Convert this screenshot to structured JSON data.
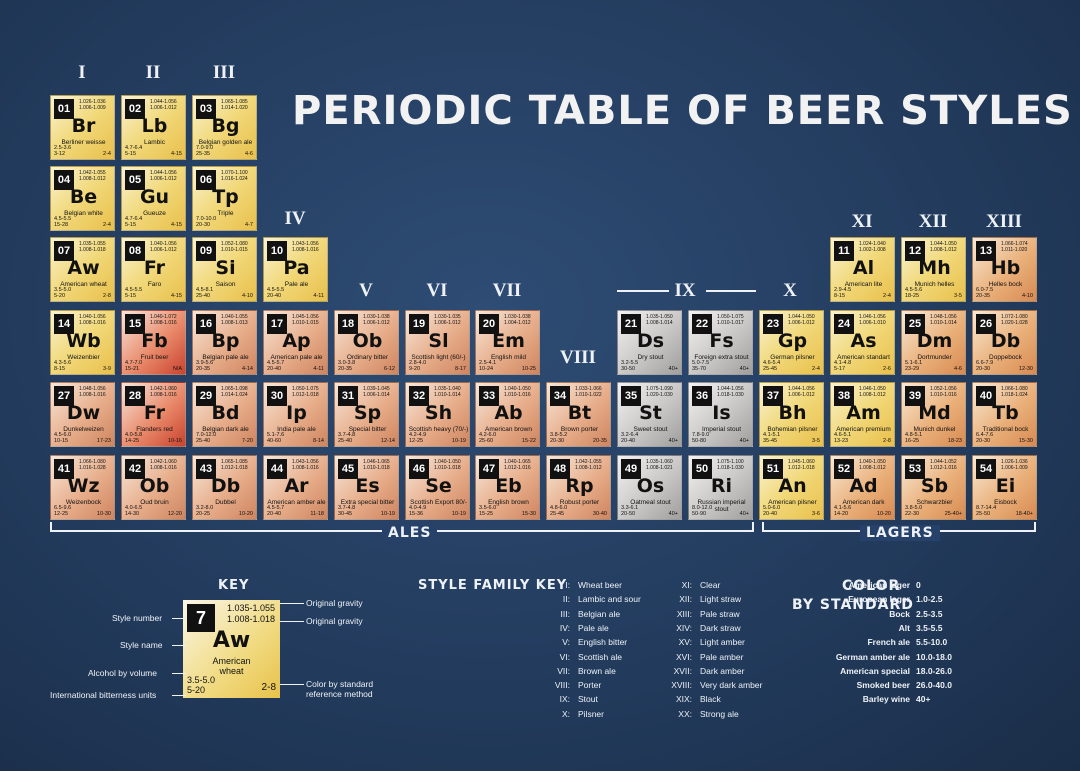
{
  "title": "PERIODIC TABLE OF BEER STYLES",
  "groups": [
    "I",
    "II",
    "III",
    "IV",
    "V",
    "VI",
    "VII",
    "VIII",
    "IX",
    "X",
    "XI",
    "XII",
    "XIII"
  ],
  "ales_label": "ALES",
  "lagers_label": "LAGERS",
  "colors": {
    "pale": "#f3e08a",
    "gold": "#f0c64e",
    "amber": "#e8a06a",
    "red": "#d9664a",
    "brown": "#c98a6e",
    "grey": "#b9b6b6",
    "dark": "#8a8888"
  },
  "styles": [
    {
      "n": "01",
      "s": "Br",
      "name": "Berliner weisse",
      "og": "1.026-1.036\n1.006-1.009",
      "abv": "2.5-3.6\n3-12",
      "srm": "2-4"
    },
    {
      "n": "02",
      "s": "Lb",
      "name": "Lambic",
      "og": "1.044-1.056\n1.006-1.012",
      "abv": "4.7-6.4\n5-15",
      "srm": "4-15"
    },
    {
      "n": "03",
      "s": "Bg",
      "name": "Belgian golden ale",
      "og": "1.065-1.085\n1.014-1.020",
      "abv": "7.0-9.0\n25-35",
      "srm": "4-6"
    },
    {
      "n": "04",
      "s": "Be",
      "name": "Belgian white",
      "og": "1.042-1.055\n1.008-1.012",
      "abv": "4.5-5.5\n15-28",
      "srm": "2-4"
    },
    {
      "n": "05",
      "s": "Gu",
      "name": "Gueuze",
      "og": "1.044-1.056\n1.006-1.012",
      "abv": "4.7-6.4\n5-15",
      "srm": "4-15"
    },
    {
      "n": "06",
      "s": "Tp",
      "name": "Triple",
      "og": "1.070-1.100\n1.016-1.024",
      "abv": "7.0-10.0\n20-30",
      "srm": "4-7"
    },
    {
      "n": "07",
      "s": "Aw",
      "name": "American wheat",
      "og": "1.035-1.055\n1.008-1.018",
      "abv": "3.5-5.0\n5-20",
      "srm": "2-8"
    },
    {
      "n": "08",
      "s": "Fr",
      "name": "Faro",
      "og": "1.040-1.056\n1.006-1.012",
      "abv": "4.5-5.5\n5-15",
      "srm": "4-15"
    },
    {
      "n": "09",
      "s": "Si",
      "name": "Saison",
      "og": "1.052-1.080\n1.010-1.015",
      "abv": "4.5-8.1\n25-40",
      "srm": "4-10"
    },
    {
      "n": "10",
      "s": "Pa",
      "name": "Pale ale",
      "og": "1.043-1.056\n1.008-1.016",
      "abv": "4.5-5.5\n20-40",
      "srm": "4-11"
    },
    {
      "n": "11",
      "s": "Al",
      "name": "American lite",
      "og": "1.024-1.040\n1.002-1.008",
      "abv": "2.9-4.5\n8-15",
      "srm": "2-4"
    },
    {
      "n": "12",
      "s": "Mh",
      "name": "Munich helles",
      "og": "1.044-1.050\n1.008-1.012",
      "abv": "4.5-5.6\n18-25",
      "srm": "3-5"
    },
    {
      "n": "13",
      "s": "Hb",
      "name": "Helles bock",
      "og": "1.066-1.074\n1.011-1.020",
      "abv": "6.0-7.5\n20-35",
      "srm": "4-10"
    },
    {
      "n": "14",
      "s": "Wb",
      "name": "Weizenbier",
      "og": "1.040-1.056\n1.008-1.016",
      "abv": "4.3-5.6\n8-15",
      "srm": "3-9"
    },
    {
      "n": "15",
      "s": "Fb",
      "name": "Fruit beer",
      "og": "1.040-1.072\n1.008-1.016",
      "abv": "4.7-7.0\n15-21",
      "srm": "N/A"
    },
    {
      "n": "16",
      "s": "Bp",
      "name": "Belgian pale ale",
      "og": "1.040-1.055\n1.008-1.013",
      "abv": "3.9-5.6\n20-35",
      "srm": "4-14"
    },
    {
      "n": "17",
      "s": "Ap",
      "name": "American pale ale",
      "og": "1.045-1.056\n1.010-1.015",
      "abv": "4.5-5.7\n20-40",
      "srm": "4-11"
    },
    {
      "n": "18",
      "s": "Ob",
      "name": "Ordinary bitter",
      "og": "1.030-1.038\n1.006-1.012",
      "abv": "3.0-3.8\n20-35",
      "srm": "6-12"
    },
    {
      "n": "19",
      "s": "Sl",
      "name": "Scottish light (60/-)",
      "og": "1.030-1.035\n1.006-1.012",
      "abv": "2.8-4.0\n9-20",
      "srm": "8-17"
    },
    {
      "n": "20",
      "s": "Em",
      "name": "English mild",
      "og": "1.030-1.038\n1.004-1.012",
      "abv": "2.5-4.1\n10-24",
      "srm": "10-25"
    },
    {
      "n": "21",
      "s": "Ds",
      "name": "Dry stout",
      "og": "1.035-1.050\n1.008-1.014",
      "abv": "3.2-5.5\n30-50",
      "srm": "40+"
    },
    {
      "n": "22",
      "s": "Fs",
      "name": "Foreign extra stout",
      "og": "1.050-1.075\n1.010-1.017",
      "abv": "5.0-7.5\n35-70",
      "srm": "40+"
    },
    {
      "n": "23",
      "s": "Gp",
      "name": "German pilsner",
      "og": "1.044-1.050\n1.006-1.012",
      "abv": "4.6-5.4\n25-45",
      "srm": "2-4"
    },
    {
      "n": "24",
      "s": "As",
      "name": "American standart",
      "og": "1.046-1.056\n1.006-1.010",
      "abv": "4.1-4.8\n5-17",
      "srm": "2-6"
    },
    {
      "n": "25",
      "s": "Dm",
      "name": "Dortmunder",
      "og": "1.048-1.056\n1.010-1.014",
      "abv": "5.1-6.1\n23-29",
      "srm": "4-6"
    },
    {
      "n": "26",
      "s": "Db",
      "name": "Doppebock",
      "og": "1.072-1.080\n1.020-1.028",
      "abv": "6.6-7.9\n20-30",
      "srm": "12-30"
    },
    {
      "n": "27",
      "s": "Dw",
      "name": "Dunkelweizen",
      "og": "1.048-1.056\n1.008-1.016",
      "abv": "4.5-6.0\n10-15",
      "srm": "17-23"
    },
    {
      "n": "28",
      "s": "Fr",
      "name": "Flanders red",
      "og": "1.042-1.060\n1.008-1.016",
      "abv": "4.0-5.8\n14-25",
      "srm": "10-16"
    },
    {
      "n": "29",
      "s": "Bd",
      "name": "Belgian dark ale",
      "og": "1.065-1.098\n1.014-1.024",
      "abv": "7.0-12.0\n25-40",
      "srm": "7-20"
    },
    {
      "n": "30",
      "s": "Ip",
      "name": "India pale ale",
      "og": "1.050-1.075\n1.012-1.018",
      "abv": "5.1-7.6\n40-60",
      "srm": "8-14"
    },
    {
      "n": "31",
      "s": "Sp",
      "name": "Special bitter",
      "og": "1.039-1.045\n1.006-1.014",
      "abv": "3.7-4.8\n25-40",
      "srm": "12-14"
    },
    {
      "n": "32",
      "s": "Sh",
      "name": "Scottish heavy (70/-)",
      "og": "1.035-1.040\n1.010-1.014",
      "abv": "4.2-4.9\n12-25",
      "srm": "10-19"
    },
    {
      "n": "33",
      "s": "Ab",
      "name": "American brown",
      "og": "1.040-1.050\n1.010-1.016",
      "abv": "4.2-6.0\n25-60",
      "srm": "15-22"
    },
    {
      "n": "34",
      "s": "Bt",
      "name": "Brown porter",
      "og": "1.033-1.066\n1.010-1.022",
      "abv": "3.8-5.2\n20-30",
      "srm": "20-35"
    },
    {
      "n": "35",
      "s": "St",
      "name": "Sweet stout",
      "og": "1.075-1.090\n1.020-1.030",
      "abv": "3.2-6.4\n20-40",
      "srm": "40+"
    },
    {
      "n": "36",
      "s": "Is",
      "name": "Imperial stout",
      "og": "1.044-1.056\n1.018-1.030",
      "abv": "7.8-9.0\n50-80",
      "srm": "40+"
    },
    {
      "n": "37",
      "s": "Bh",
      "name": "Bohemian pilsner",
      "og": "1.044-1.056\n1.006-1.012",
      "abv": "4.1-5.1\n35-45",
      "srm": "3-5"
    },
    {
      "n": "38",
      "s": "Am",
      "name": "American premium",
      "og": "1.046-1.050\n1.008-1.012",
      "abv": "4.6-5.1\n13-23",
      "srm": "2-8"
    },
    {
      "n": "39",
      "s": "Md",
      "name": "Munich dunkel",
      "og": "1.052-1.056\n1.010-1.016",
      "abv": "4.8-5.1\n16-25",
      "srm": "18-23"
    },
    {
      "n": "40",
      "s": "Tb",
      "name": "Traditional bock",
      "og": "1.066-1.080\n1.018-1.024",
      "abv": "6.4-7.6\n20-30",
      "srm": "15-30"
    },
    {
      "n": "41",
      "s": "Wz",
      "name": "Weizenbock",
      "og": "1.066-1.080\n1.016-1.028",
      "abv": "6.5-9.6\n12-25",
      "srm": "10-30"
    },
    {
      "n": "42",
      "s": "Ob",
      "name": "Oud bruin",
      "og": "1.042-1.060\n1.008-1.016",
      "abv": "4.0-6.5\n14-30",
      "srm": "12-20"
    },
    {
      "n": "43",
      "s": "Db",
      "name": "Dubbel",
      "og": "1.065-1.085\n1.012-1.018",
      "abv": "3.2-8.0\n20-25",
      "srm": "10-20"
    },
    {
      "n": "44",
      "s": "Ar",
      "name": "American amber ale",
      "og": "1.043-1.056\n1.008-1.016",
      "abv": "4.5-5.7\n20-40",
      "srm": "11-18"
    },
    {
      "n": "45",
      "s": "Es",
      "name": "Extra special bitter",
      "og": "1.046-1.065\n1.010-1.018",
      "abv": "3.7-4.8\n30-45",
      "srm": "10-19"
    },
    {
      "n": "46",
      "s": "Se",
      "name": "Scottish Export 80/-",
      "og": "1.040-1.050\n1.010-1.018",
      "abv": "4.0-4.9\n15-36",
      "srm": "10-19"
    },
    {
      "n": "47",
      "s": "Eb",
      "name": "English brown",
      "og": "1.040-1.065\n1.012-1.016",
      "abv": "3.5-6.0\n15-25",
      "srm": "15-30"
    },
    {
      "n": "48",
      "s": "Rp",
      "name": "Robust porter",
      "og": "1.042-1.055\n1.008-1.012",
      "abv": "4.8-6.0\n25-45",
      "srm": "30-40"
    },
    {
      "n": "49",
      "s": "Os",
      "name": "Oatmeal stout",
      "og": "1.035-1.060\n1.008-1.021",
      "abv": "3.3-6.1\n20-50",
      "srm": "40+"
    },
    {
      "n": "50",
      "s": "Ri",
      "name": "Russian imperial stout",
      "og": "1.075-1.100\n1.018-1.030",
      "abv": "8.0-12.0\n50-90",
      "srm": "40+"
    },
    {
      "n": "51",
      "s": "An",
      "name": "American pilsner",
      "og": "1.045-1.060\n1.012-1.018",
      "abv": "5.0-6.0\n20-40",
      "srm": "3-6"
    },
    {
      "n": "52",
      "s": "Ad",
      "name": "American dark",
      "og": "1.040-1.050\n1.008-1.012",
      "abv": "4.1-5.6\n14-20",
      "srm": "10-20"
    },
    {
      "n": "53",
      "s": "Sb",
      "name": "Schwarzbier",
      "og": "1.044-1.052\n1.012-1.016",
      "abv": "3.8-5.0\n22-30",
      "srm": "25-40+"
    },
    {
      "n": "54",
      "s": "Ei",
      "name": "Eisbock",
      "og": "1.026-1.036\n1.006-1.009",
      "abv": "8.7-14.4\n25-50",
      "srm": "18-40+"
    }
  ],
  "key": {
    "heading": "KEY",
    "number": "7",
    "og1": "1.035-1.055",
    "og2": "1.008-1.018",
    "symbol": "Aw",
    "name": "American wheat",
    "abv": "3.5-5.0",
    "ibu": "5-20",
    "srm": "2-8",
    "label_number": "Style number",
    "label_name": "Style name",
    "label_abv": "Alcohol by volume",
    "label_ibu": "International bitterness units",
    "label_og1": "Original gravity",
    "label_og2": "Original gravity",
    "label_color": "Color by standard reference method"
  },
  "family_key": {
    "heading": "STYLE FAMILY KEY",
    "col1": [
      {
        "r": "I:",
        "t": "Wheat beer"
      },
      {
        "r": "II:",
        "t": "Lambic and sour"
      },
      {
        "r": "III:",
        "t": "Belgian ale"
      },
      {
        "r": "IV:",
        "t": "Pale ale"
      },
      {
        "r": "V:",
        "t": "English bitter"
      },
      {
        "r": "VI:",
        "t": "Scottish ale"
      },
      {
        "r": "VII:",
        "t": "Brown ale"
      },
      {
        "r": "VIII:",
        "t": "Porter"
      },
      {
        "r": "IX:",
        "t": "Stout"
      },
      {
        "r": "X:",
        "t": "Pilsner"
      }
    ],
    "col2": [
      {
        "r": "XI:",
        "t": "Clear"
      },
      {
        "r": "XII:",
        "t": "Light straw"
      },
      {
        "r": "XIII:",
        "t": "Pale straw"
      },
      {
        "r": "XIV:",
        "t": "Dark straw"
      },
      {
        "r": "XV:",
        "t": "Light amber"
      },
      {
        "r": "XVI:",
        "t": "Pale amber"
      },
      {
        "r": "XVII:",
        "t": "Dark amber"
      },
      {
        "r": "XVIII:",
        "t": "Very dark amber"
      },
      {
        "r": "XIX:",
        "t": "Black"
      },
      {
        "r": "XX:",
        "t": "Strong ale"
      }
    ]
  },
  "color_standard": {
    "heading1": "COLOR",
    "heading2": "BY STANDARD",
    "rows": [
      {
        "n": "American lager",
        "v": "0"
      },
      {
        "n": "European lager",
        "v": "1.0-2.5"
      },
      {
        "n": "Bock",
        "v": "2.5-3.5"
      },
      {
        "n": "Alt",
        "v": "3.5-5.5"
      },
      {
        "n": "French ale",
        "v": "5.5-10.0"
      },
      {
        "n": "German amber ale",
        "v": "10.0-18.0"
      },
      {
        "n": "American special",
        "v": "18.0-26.0"
      },
      {
        "n": "Smoked beer",
        "v": "26.0-40.0"
      },
      {
        "n": "Barley wine",
        "v": "40+"
      }
    ]
  }
}
